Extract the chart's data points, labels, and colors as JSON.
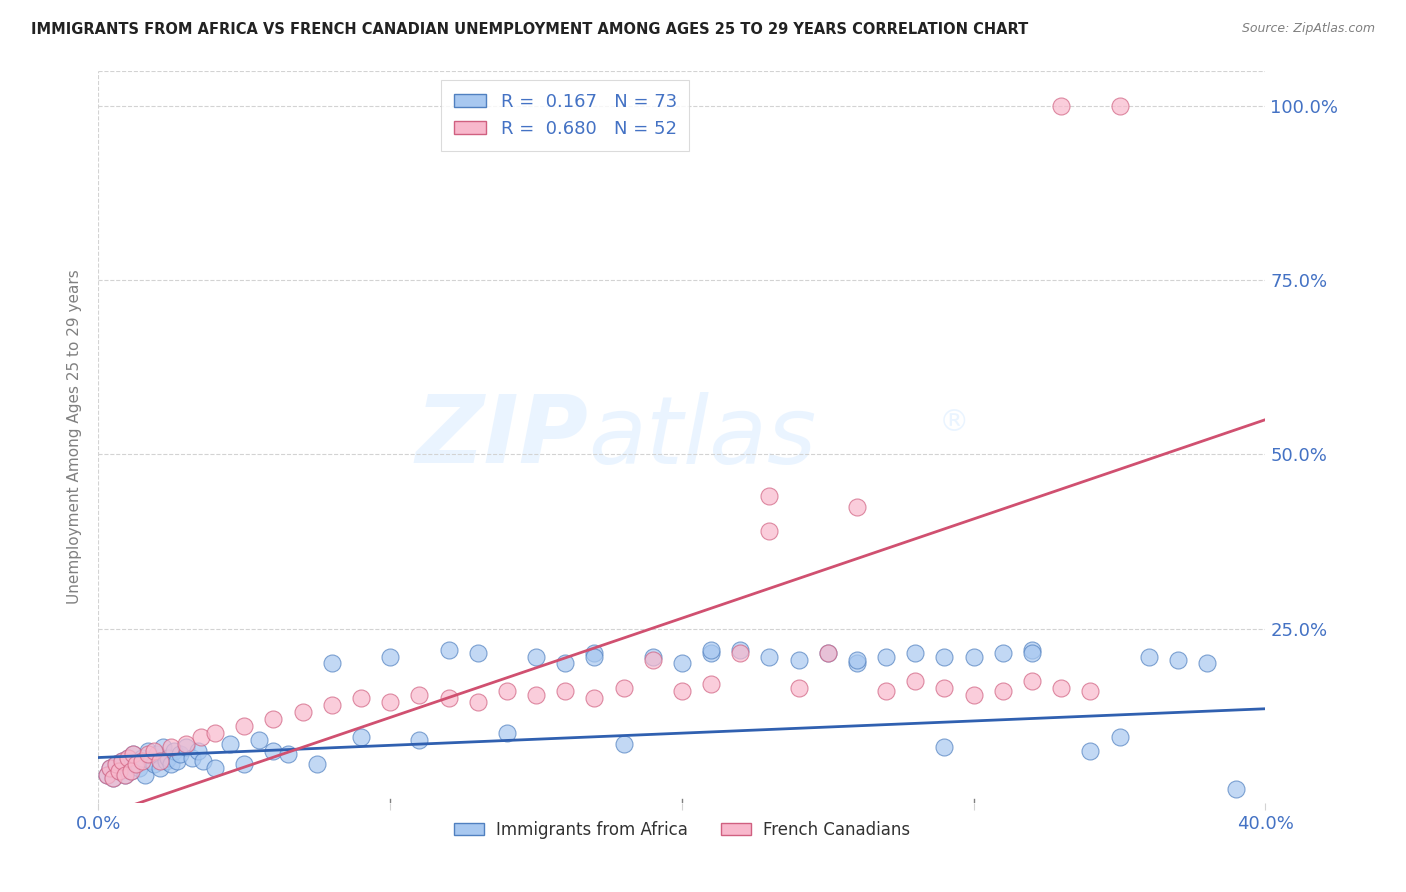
{
  "title": "IMMIGRANTS FROM AFRICA VS FRENCH CANADIAN UNEMPLOYMENT AMONG AGES 25 TO 29 YEARS CORRELATION CHART",
  "source": "Source: ZipAtlas.com",
  "ylabel": "Unemployment Among Ages 25 to 29 years",
  "xlim": [
    0.0,
    0.4
  ],
  "ylim": [
    0.0,
    1.05
  ],
  "ytick_values": [
    0.0,
    0.25,
    0.5,
    0.75,
    1.0
  ],
  "ytick_labels": [
    "",
    "25.0%",
    "50.0%",
    "75.0%",
    "100.0%"
  ],
  "legend_label_blue": "R =  0.167   N = 73",
  "legend_label_pink": "R =  0.680   N = 52",
  "legend_label_bottom_blue": "Immigrants from Africa",
  "legend_label_bottom_pink": "French Canadians",
  "blue_face_color": "#A8C8F0",
  "blue_edge_color": "#5080C0",
  "pink_face_color": "#F8B8CC",
  "pink_edge_color": "#D06080",
  "blue_line_color": "#3060B0",
  "pink_line_color": "#D05070",
  "text_color_blue": "#4472C4",
  "background_color": "#ffffff",
  "blue_x": [
    0.003,
    0.004,
    0.005,
    0.006,
    0.007,
    0.008,
    0.009,
    0.01,
    0.011,
    0.012,
    0.013,
    0.014,
    0.015,
    0.016,
    0.017,
    0.018,
    0.019,
    0.02,
    0.021,
    0.022,
    0.023,
    0.024,
    0.025,
    0.026,
    0.027,
    0.028,
    0.03,
    0.032,
    0.034,
    0.036,
    0.04,
    0.045,
    0.05,
    0.055,
    0.06,
    0.065,
    0.075,
    0.08,
    0.09,
    0.1,
    0.11,
    0.12,
    0.13,
    0.14,
    0.15,
    0.16,
    0.17,
    0.18,
    0.19,
    0.2,
    0.21,
    0.22,
    0.23,
    0.24,
    0.25,
    0.26,
    0.27,
    0.28,
    0.29,
    0.3,
    0.31,
    0.32,
    0.34,
    0.35,
    0.36,
    0.37,
    0.38,
    0.39,
    0.32,
    0.29,
    0.26,
    0.21,
    0.17
  ],
  "blue_y": [
    0.04,
    0.05,
    0.035,
    0.055,
    0.045,
    0.06,
    0.04,
    0.065,
    0.045,
    0.07,
    0.055,
    0.05,
    0.065,
    0.04,
    0.075,
    0.06,
    0.055,
    0.07,
    0.05,
    0.08,
    0.06,
    0.065,
    0.055,
    0.075,
    0.06,
    0.07,
    0.08,
    0.065,
    0.075,
    0.06,
    0.05,
    0.085,
    0.055,
    0.09,
    0.075,
    0.07,
    0.055,
    0.2,
    0.095,
    0.21,
    0.09,
    0.22,
    0.215,
    0.1,
    0.21,
    0.2,
    0.215,
    0.085,
    0.21,
    0.2,
    0.215,
    0.22,
    0.21,
    0.205,
    0.215,
    0.2,
    0.21,
    0.215,
    0.08,
    0.21,
    0.215,
    0.22,
    0.075,
    0.095,
    0.21,
    0.205,
    0.2,
    0.02,
    0.215,
    0.21,
    0.205,
    0.22,
    0.21
  ],
  "pink_x": [
    0.003,
    0.004,
    0.005,
    0.006,
    0.007,
    0.008,
    0.009,
    0.01,
    0.011,
    0.012,
    0.013,
    0.015,
    0.017,
    0.019,
    0.021,
    0.025,
    0.03,
    0.035,
    0.04,
    0.05,
    0.06,
    0.07,
    0.08,
    0.09,
    0.1,
    0.11,
    0.12,
    0.13,
    0.14,
    0.15,
    0.16,
    0.17,
    0.18,
    0.19,
    0.2,
    0.21,
    0.22,
    0.23,
    0.24,
    0.25,
    0.26,
    0.27,
    0.28,
    0.29,
    0.3,
    0.31,
    0.32,
    0.33,
    0.34,
    0.35,
    0.33,
    0.23
  ],
  "pink_y": [
    0.04,
    0.05,
    0.035,
    0.055,
    0.045,
    0.06,
    0.04,
    0.065,
    0.045,
    0.07,
    0.055,
    0.06,
    0.07,
    0.075,
    0.06,
    0.08,
    0.085,
    0.095,
    0.1,
    0.11,
    0.12,
    0.13,
    0.14,
    0.15,
    0.145,
    0.155,
    0.15,
    0.145,
    0.16,
    0.155,
    0.16,
    0.15,
    0.165,
    0.205,
    0.16,
    0.17,
    0.215,
    0.39,
    0.165,
    0.215,
    0.425,
    0.16,
    0.175,
    0.165,
    0.155,
    0.16,
    0.175,
    0.165,
    0.16,
    1.0,
    1.0,
    0.44
  ],
  "blue_line_x0": 0.0,
  "blue_line_y0": 0.065,
  "blue_line_x1": 0.4,
  "blue_line_y1": 0.135,
  "pink_line_x0": 0.0,
  "pink_line_y0": -0.02,
  "pink_line_x1": 0.4,
  "pink_line_y1": 0.55
}
